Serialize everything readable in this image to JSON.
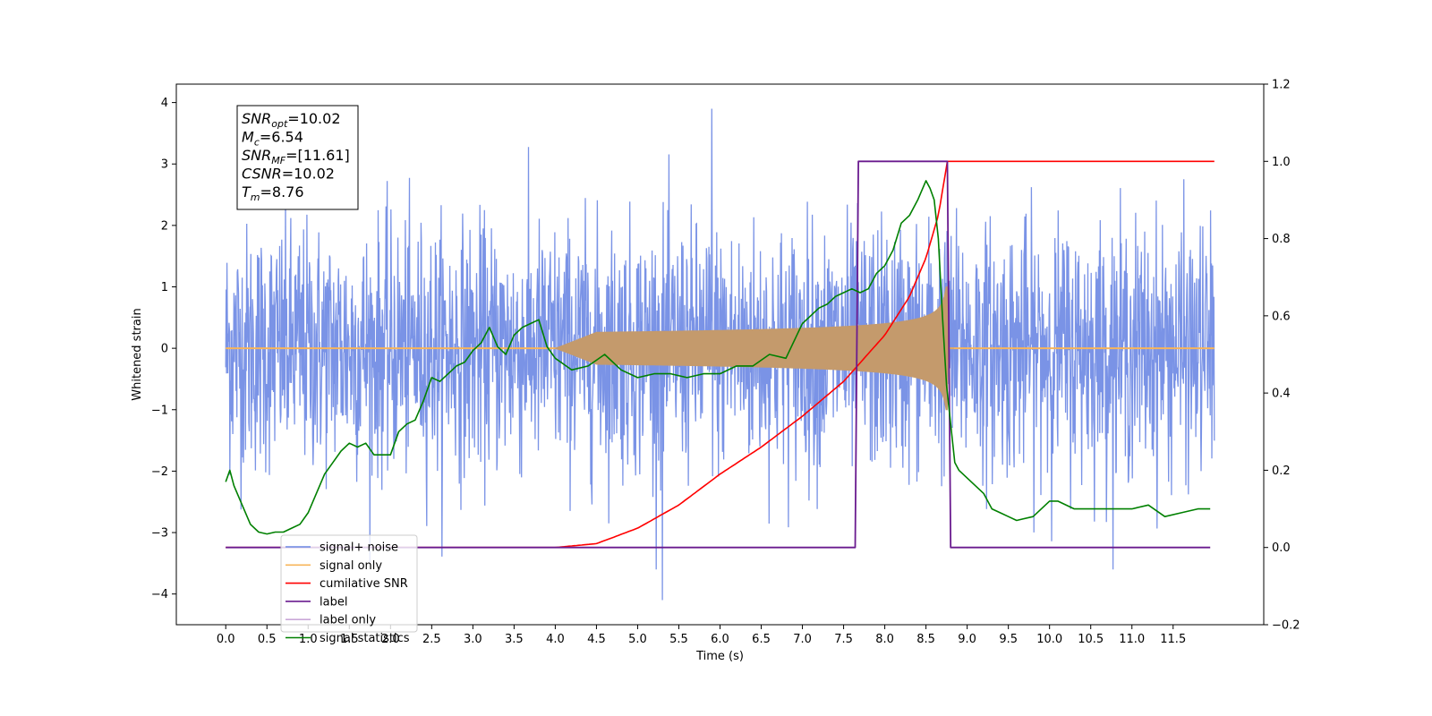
{
  "chart_data": {
    "type": "line",
    "xlabel": "Time (s)",
    "ylabel": "Whitened strain",
    "xlim": [
      -0.6,
      12.6
    ],
    "ylim": [
      -4.5,
      4.3
    ],
    "y2lim": [
      -0.2,
      1.2
    ],
    "x_ticks": [
      "0.0",
      "0.5",
      "1.0",
      "1.5",
      "2.0",
      "2.5",
      "3.0",
      "3.5",
      "4.0",
      "4.5",
      "5.0",
      "5.5",
      "6.0",
      "6.5",
      "7.0",
      "7.5",
      "8.0",
      "8.5",
      "9.0",
      "9.5",
      "10.0",
      "10.5",
      "11.0",
      "11.5"
    ],
    "y_ticks": [
      "4",
      "3",
      "2",
      "1",
      "0",
      "−1",
      "−2",
      "−3",
      "−4"
    ],
    "y2_ticks": [
      "1.2",
      "1.0",
      "0.8",
      "0.6",
      "0.4",
      "0.2",
      "0.0",
      "−0.2"
    ],
    "legend_position": "lower-left",
    "info_box": [
      {
        "sym": "SNR",
        "sub": "opt",
        "val": "=10.02"
      },
      {
        "sym": "M",
        "sub": "c",
        "val": "=6.54"
      },
      {
        "sym": "SNR",
        "sub": "MF",
        "val": "=[11.61]"
      },
      {
        "sym": "CSNR",
        "sub": "",
        "val": "=10.02"
      },
      {
        "sym": "T",
        "sub": "m",
        "val": "=8.76"
      }
    ],
    "series": [
      {
        "name": "signal+ noise",
        "color": "#6b87e3",
        "axis": "left",
        "x_range": [
          0.0,
          12.0
        ],
        "mean": 0.0,
        "envelope": [
          -2.6,
          2.8
        ],
        "note_values": {
          "max": 3.9,
          "min": -4.1
        }
      },
      {
        "name": "signal only",
        "color": "#f7b55a",
        "axis": "left",
        "x_range": [
          0.0,
          12.0
        ],
        "chirp_start": 4.0,
        "merger": 8.76,
        "amplitude_at_merger": 1.0
      },
      {
        "name": "cumilative SNR",
        "color": "#ff0000",
        "axis": "right",
        "x": [
          0.0,
          4.0,
          4.5,
          5.0,
          5.5,
          6.0,
          6.5,
          7.0,
          7.5,
          8.0,
          8.3,
          8.5,
          8.65,
          8.76,
          12.0
        ],
        "y": [
          0.0,
          0.0,
          0.01,
          0.05,
          0.11,
          0.19,
          0.26,
          0.34,
          0.43,
          0.55,
          0.65,
          0.75,
          0.86,
          1.0,
          1.0
        ]
      },
      {
        "name": "label",
        "color": "#6a1b8f",
        "axis": "right",
        "x": [
          0.0,
          7.64,
          7.68,
          8.76,
          8.8,
          11.95
        ],
        "y": [
          0.0,
          0.0,
          1.0,
          1.0,
          0.0,
          0.0
        ]
      },
      {
        "name": "label only",
        "color": "#c9a8d8",
        "axis": "right",
        "x": [],
        "y": []
      },
      {
        "name": "signal statistics",
        "color": "#008000",
        "axis": "right",
        "x": [
          0.0,
          0.05,
          0.1,
          0.2,
          0.3,
          0.4,
          0.5,
          0.6,
          0.7,
          0.8,
          0.9,
          1.0,
          1.1,
          1.2,
          1.3,
          1.4,
          1.5,
          1.6,
          1.7,
          1.8,
          1.9,
          2.0,
          2.1,
          2.2,
          2.3,
          2.4,
          2.5,
          2.6,
          2.7,
          2.8,
          2.9,
          3.0,
          3.1,
          3.2,
          3.3,
          3.4,
          3.5,
          3.6,
          3.7,
          3.8,
          3.9,
          4.0,
          4.2,
          4.4,
          4.6,
          4.8,
          5.0,
          5.2,
          5.4,
          5.6,
          5.8,
          6.0,
          6.2,
          6.4,
          6.6,
          6.8,
          7.0,
          7.1,
          7.2,
          7.3,
          7.4,
          7.5,
          7.6,
          7.7,
          7.8,
          7.9,
          8.0,
          8.1,
          8.2,
          8.3,
          8.4,
          8.5,
          8.55,
          8.6,
          8.65,
          8.7,
          8.75,
          8.8,
          8.85,
          8.9,
          9.0,
          9.1,
          9.2,
          9.3,
          9.4,
          9.5,
          9.6,
          9.8,
          10.0,
          10.1,
          10.3,
          10.5,
          10.7,
          11.0,
          11.2,
          11.4,
          11.6,
          11.8,
          11.95
        ],
        "y": [
          0.17,
          0.2,
          0.16,
          0.11,
          0.06,
          0.04,
          0.035,
          0.04,
          0.04,
          0.05,
          0.06,
          0.09,
          0.14,
          0.19,
          0.22,
          0.25,
          0.27,
          0.26,
          0.27,
          0.24,
          0.24,
          0.24,
          0.3,
          0.32,
          0.33,
          0.38,
          0.44,
          0.43,
          0.45,
          0.47,
          0.48,
          0.51,
          0.53,
          0.57,
          0.52,
          0.5,
          0.55,
          0.57,
          0.58,
          0.59,
          0.52,
          0.49,
          0.46,
          0.47,
          0.5,
          0.46,
          0.44,
          0.45,
          0.45,
          0.44,
          0.45,
          0.45,
          0.47,
          0.47,
          0.5,
          0.49,
          0.58,
          0.6,
          0.62,
          0.63,
          0.65,
          0.66,
          0.67,
          0.66,
          0.67,
          0.71,
          0.73,
          0.77,
          0.84,
          0.86,
          0.9,
          0.95,
          0.93,
          0.9,
          0.8,
          0.6,
          0.42,
          0.32,
          0.22,
          0.2,
          0.18,
          0.16,
          0.14,
          0.1,
          0.09,
          0.08,
          0.07,
          0.08,
          0.12,
          0.12,
          0.1,
          0.1,
          0.1,
          0.1,
          0.11,
          0.08,
          0.09,
          0.1,
          0.1
        ]
      }
    ]
  }
}
